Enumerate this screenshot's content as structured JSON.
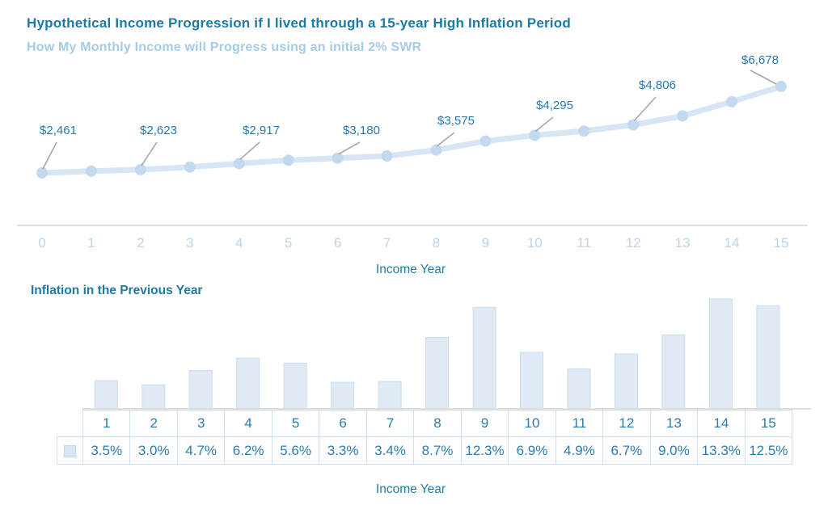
{
  "header": {
    "title": "Hypothetical Income Progression if I lived through a 15-year High Inflation Period",
    "subtitle": "How My Monthly Income will Progress using an initial 2% SWR"
  },
  "chart_data": [
    {
      "type": "line",
      "title": "Hypothetical Income Progression if I lived through a 15-year High Inflation Period",
      "subtitle": "How My Monthly Income will Progress using an initial 2% SWR",
      "xlabel": "Income Year",
      "x": [
        0,
        1,
        2,
        3,
        4,
        5,
        6,
        7,
        8,
        9,
        10,
        11,
        12,
        13,
        14,
        15
      ],
      "values": [
        2461,
        2547,
        2623,
        2746,
        2917,
        3080,
        3180,
        3288,
        3575,
        4015,
        4295,
        4505,
        4806,
        5239,
        5936,
        6678
      ],
      "labeled_points": [
        {
          "x": 0,
          "text": "$2,461"
        },
        {
          "x": 2,
          "text": "$2,623"
        },
        {
          "x": 4,
          "text": "$2,917"
        },
        {
          "x": 6,
          "text": "$3,180"
        },
        {
          "x": 8,
          "text": "$3,575"
        },
        {
          "x": 10,
          "text": "$4,295"
        },
        {
          "x": 12,
          "text": "$4,806"
        },
        {
          "x": 15,
          "text": "$6,678"
        }
      ],
      "ylim": [
        2461,
        6678
      ],
      "grid": false,
      "legend_position": "none"
    },
    {
      "type": "bar",
      "title": "Inflation in the Previous Year",
      "xlabel": "Income Year",
      "categories": [
        "1",
        "2",
        "3",
        "4",
        "5",
        "6",
        "7",
        "8",
        "9",
        "10",
        "11",
        "12",
        "13",
        "14",
        "15"
      ],
      "values": [
        3.5,
        3.0,
        4.7,
        6.2,
        5.6,
        3.3,
        3.4,
        8.7,
        12.3,
        6.9,
        4.9,
        6.7,
        9.0,
        13.3,
        12.5
      ],
      "value_labels": [
        "3.5%",
        "3.0%",
        "4.7%",
        "6.2%",
        "5.6%",
        "3.3%",
        "3.4%",
        "8.7%",
        "12.3%",
        "6.9%",
        "4.9%",
        "6.7%",
        "9.0%",
        "13.3%",
        "12.5%"
      ],
      "ylim": [
        0,
        13.3
      ],
      "grid": false,
      "legend_position": "table-row-swatch"
    }
  ],
  "colors": {
    "title": "#1b7aa6",
    "subtitle": "#a6cbe7",
    "axis_tick": "#bdd3e8",
    "axis_title": "#1e7ca6",
    "data_label": "#2978ab",
    "line": "#d7e5f4",
    "marker": "#c3d9ef",
    "callout": "#a8a8a8",
    "axis_line": "#dedede",
    "bar_fill": "#e0eaf5",
    "bar_stroke": "#cadcee",
    "table_border": "#cfe0f0",
    "table_text": "#2b7cad",
    "swatch_fill": "#d9e7f4",
    "swatch_border": "#c3d8ec"
  }
}
